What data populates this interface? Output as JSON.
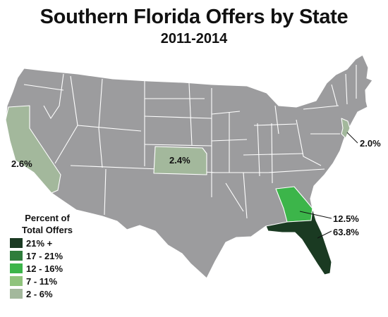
{
  "title": "Southern Florida Offers by State",
  "subtitle": "2011-2014",
  "colors": {
    "other_states": "#9c9c9e",
    "dark": "#1a3a22",
    "mid": "#2f7d3c",
    "bright": "#3cb54a",
    "light": "#8fc37c",
    "pale": "#a3b89c"
  },
  "legend": {
    "title_line1": "Percent of",
    "title_line2": "Total Offers",
    "items": [
      {
        "label": "21% +",
        "color": "#1a3a22"
      },
      {
        "label": "17 - 21%",
        "color": "#2f7d3c"
      },
      {
        "label": "12 - 16%",
        "color": "#3cb54a"
      },
      {
        "label": "7 - 11%",
        "color": "#8fc37c"
      },
      {
        "label": "2 - 6%",
        "color": "#a3b89c"
      }
    ]
  },
  "highlighted_states": [
    {
      "state": "Florida",
      "value": "63.8%",
      "color": "#1a3a22"
    },
    {
      "state": "Georgia",
      "value": "12.5%",
      "color": "#3cb54a"
    },
    {
      "state": "California",
      "value": "2.6%",
      "color": "#a3b89c"
    },
    {
      "state": "Kansas",
      "value": "2.4%",
      "color": "#a3b89c"
    },
    {
      "state": "New Jersey",
      "value": "2.0%",
      "color": "#a3b89c"
    }
  ]
}
